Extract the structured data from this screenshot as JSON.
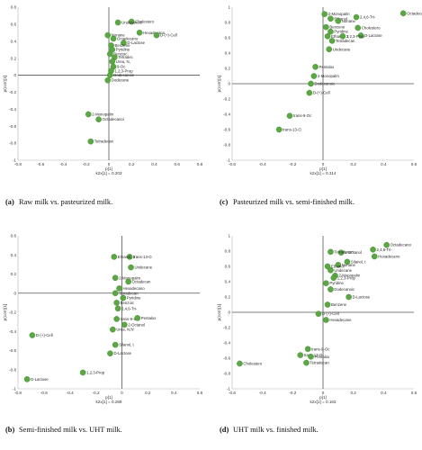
{
  "chart_data": [
    {
      "type": "scatter",
      "panel": "(a)",
      "caption": "Raw milk vs. pasteurized milk.",
      "xlabel": "p[1]",
      "xsub": "k2x[1] = 0.203",
      "ylabel": "p(corr)[1]",
      "xlim": [
        -0.8,
        0.8
      ],
      "ylim": [
        -1.0,
        0.8
      ],
      "xticks": [
        -0.8,
        -0.6,
        -0.4,
        -0.2,
        0,
        0.2,
        0.4,
        0.6,
        0.8
      ],
      "yticks": [
        0.8,
        0.6,
        0.4,
        0.2,
        0,
        -0.2,
        -0.4,
        -0.6,
        -0.8,
        -1
      ],
      "points": [
        {
          "x": 0.2,
          "y": 0.63,
          "label": "Cholestero"
        },
        {
          "x": 0.08,
          "y": 0.62,
          "label": "Undecanoic"
        },
        {
          "x": 0.27,
          "y": 0.5,
          "label": "Hexadecano"
        },
        {
          "x": 0.42,
          "y": 0.47,
          "label": "D-(+)-Cell"
        },
        {
          "x": 0.13,
          "y": 0.38,
          "label": "D-Lactose"
        },
        {
          "x": -0.01,
          "y": 0.47,
          "label": "Nonane"
        },
        {
          "x": 0.04,
          "y": 0.43,
          "label": "Octadecano"
        },
        {
          "x": 0.02,
          "y": 0.35,
          "label": "Benzene"
        },
        {
          "x": 0.03,
          "y": 0.3,
          "label": "Pyridine"
        },
        {
          "x": 0.01,
          "y": 0.25,
          "label": "Benzoic"
        },
        {
          "x": 0.05,
          "y": 0.21,
          "label": "Tetradec"
        },
        {
          "x": 0.03,
          "y": 0.16,
          "label": "Urea, N,"
        },
        {
          "x": 0.04,
          "y": 0.1,
          "label": "9-Oc"
        },
        {
          "x": 0.02,
          "y": 0.05,
          "label": "1,2,3-Prop"
        },
        {
          "x": 0.01,
          "y": 0.0,
          "label": "Dodecanoic"
        },
        {
          "x": -0.01,
          "y": -0.06,
          "label": "Dodecane"
        },
        {
          "x": -0.18,
          "y": -0.46,
          "label": "2-Monopalm"
        },
        {
          "x": -0.09,
          "y": -0.52,
          "label": "Octadecanoi"
        },
        {
          "x": -0.16,
          "y": -0.78,
          "label": "Tetradecan"
        }
      ]
    },
    {
      "type": "scatter",
      "panel": "(c)",
      "caption": "Pasteurized milk vs. semi-finished milk.",
      "xlabel": "p[1]",
      "xsub": "k2x[1] = 0.314",
      "ylabel": "p(corr)[1]",
      "xlim": [
        -0.6,
        0.6
      ],
      "ylim": [
        -1.0,
        1.0
      ],
      "xticks": [
        -0.6,
        -0.4,
        -0.2,
        0,
        0.2,
        0.4,
        0.6
      ],
      "yticks": [
        1,
        0.8,
        0.6,
        0.4,
        0.2,
        0,
        -0.2,
        -0.4,
        -0.6,
        -0.8,
        -1
      ],
      "points": [
        {
          "x": 0.53,
          "y": 0.92,
          "label": "Octadecano"
        },
        {
          "x": 0.22,
          "y": 0.87,
          "label": "2,4,6-Tri-"
        },
        {
          "x": 0.01,
          "y": 0.91,
          "label": "2-Monopalm"
        },
        {
          "x": 0.05,
          "y": 0.85,
          "label": "Ethanol"
        },
        {
          "x": 0.1,
          "y": 0.82,
          "label": "Nonane"
        },
        {
          "x": 0.23,
          "y": 0.73,
          "label": "Cholestero"
        },
        {
          "x": 0.25,
          "y": 0.63,
          "label": "D-Lactose"
        },
        {
          "x": 0.02,
          "y": 0.74,
          "label": "Benzene"
        },
        {
          "x": 0.05,
          "y": 0.68,
          "label": "Pyridine"
        },
        {
          "x": 0.03,
          "y": 0.62,
          "label": "Ethanol, 2"
        },
        {
          "x": 0.13,
          "y": 0.62,
          "label": "1,2,3-Prop"
        },
        {
          "x": 0.06,
          "y": 0.56,
          "label": "Tetradecan"
        },
        {
          "x": 0.04,
          "y": 0.45,
          "label": "Undecane"
        },
        {
          "x": -0.05,
          "y": 0.22,
          "label": "Pentalox"
        },
        {
          "x": -0.06,
          "y": 0.1,
          "label": "2-Monopalm"
        },
        {
          "x": -0.08,
          "y": 0.0,
          "label": "Dodecanoic"
        },
        {
          "x": -0.09,
          "y": -0.12,
          "label": "D-(+)-Cell"
        },
        {
          "x": -0.22,
          "y": -0.42,
          "label": "trans-9-Oc"
        },
        {
          "x": -0.29,
          "y": -0.6,
          "label": "trans-13-O"
        }
      ]
    },
    {
      "type": "scatter",
      "panel": "(b)",
      "caption": "Semi-finished milk vs. UHT milk.",
      "xlabel": "p[1]",
      "xsub": "k2x[1] = 0.289",
      "ylabel": "p(corr)[1]",
      "xlim": [
        -0.8,
        0.6
      ],
      "ylim": [
        -1.0,
        0.6
      ],
      "xticks": [
        -0.8,
        -0.6,
        -0.4,
        -0.2,
        0,
        0.2,
        0.4,
        0.6
      ],
      "yticks": [
        0.6,
        0.4,
        0.2,
        0,
        -0.2,
        -0.4,
        -0.6,
        -0.8,
        -1
      ],
      "points": [
        {
          "x": 0.06,
          "y": 0.38,
          "label": "trans-13-O"
        },
        {
          "x": -0.06,
          "y": 0.38,
          "label": "Ethanol, 2"
        },
        {
          "x": 0.07,
          "y": 0.27,
          "label": "Undecane"
        },
        {
          "x": -0.05,
          "y": 0.16,
          "label": "2-Monopalm"
        },
        {
          "x": 0.05,
          "y": 0.12,
          "label": "Octadecan"
        },
        {
          "x": -0.02,
          "y": 0.05,
          "label": "Hexadecano"
        },
        {
          "x": -0.05,
          "y": 0.0,
          "label": "Tetradecan"
        },
        {
          "x": 0.01,
          "y": -0.05,
          "label": "Pyridine"
        },
        {
          "x": -0.04,
          "y": -0.1,
          "label": "Benzoic"
        },
        {
          "x": -0.03,
          "y": -0.16,
          "label": "2,4,6-Tri-"
        },
        {
          "x": -0.04,
          "y": -0.27,
          "label": "trans-9-Oc"
        },
        {
          "x": 0.12,
          "y": -0.26,
          "label": "Pentalox"
        },
        {
          "x": 0.02,
          "y": -0.33,
          "label": "2-Octanol"
        },
        {
          "x": -0.07,
          "y": -0.38,
          "label": "Urea, N,N'"
        },
        {
          "x": -0.09,
          "y": -0.63,
          "label": "D-Lactose"
        },
        {
          "x": -0.05,
          "y": -0.54,
          "label": "Silanol, t"
        },
        {
          "x": -0.69,
          "y": -0.44,
          "label": "D-(+)-Cell"
        },
        {
          "x": -0.73,
          "y": -0.9,
          "label": "D-Lactose"
        },
        {
          "x": -0.3,
          "y": -0.83,
          "label": "1,2,3-Prop"
        }
      ]
    },
    {
      "type": "scatter",
      "panel": "(d)",
      "caption": "UHT milk vs. finished milk.",
      "xlabel": "p[1]",
      "xsub": "k2x[1] = 0.163",
      "ylabel": "p(corr)[1]",
      "xlim": [
        -0.6,
        0.6
      ],
      "ylim": [
        -1.0,
        1.0
      ],
      "xticks": [
        -0.6,
        -0.4,
        -0.2,
        0,
        0.2,
        0.4,
        0.6
      ],
      "yticks": [
        1,
        0.8,
        0.6,
        0.4,
        0.2,
        0,
        -0.2,
        -0.4,
        -0.6,
        -0.8,
        -1
      ],
      "points": [
        {
          "x": 0.42,
          "y": 0.88,
          "label": "Octadecano"
        },
        {
          "x": 0.33,
          "y": 0.82,
          "label": "2,4,6-Tri-"
        },
        {
          "x": 0.34,
          "y": 0.73,
          "label": "Hexadecano"
        },
        {
          "x": 0.12,
          "y": 0.78,
          "label": "2-Octanol"
        },
        {
          "x": 0.05,
          "y": 0.79,
          "label": "Tetradecan"
        },
        {
          "x": 0.16,
          "y": 0.66,
          "label": "Silanol, t"
        },
        {
          "x": 0.1,
          "y": 0.62,
          "label": "Nonane"
        },
        {
          "x": 0.03,
          "y": 0.6,
          "label": "Ethanol"
        },
        {
          "x": 0.05,
          "y": 0.55,
          "label": "Undecane"
        },
        {
          "x": 0.08,
          "y": 0.48,
          "label": "2-Monopalm"
        },
        {
          "x": 0.07,
          "y": 0.45,
          "label": "1,2,3-Prop"
        },
        {
          "x": 0.02,
          "y": 0.38,
          "label": "Pyridine"
        },
        {
          "x": 0.05,
          "y": 0.3,
          "label": "Dodecanoic"
        },
        {
          "x": 0.17,
          "y": 0.2,
          "label": "D-Lactose"
        },
        {
          "x": 0.03,
          "y": 0.1,
          "label": "Benzene"
        },
        {
          "x": -0.03,
          "y": -0.02,
          "label": "D-(+)-Cell"
        },
        {
          "x": 0.02,
          "y": -0.1,
          "label": "Hexadecane"
        },
        {
          "x": -0.1,
          "y": -0.48,
          "label": "trans-9-Oc"
        },
        {
          "x": -0.15,
          "y": -0.56,
          "label": "trans-13-O"
        },
        {
          "x": -0.08,
          "y": -0.58,
          "label": "Pentalox"
        },
        {
          "x": -0.11,
          "y": -0.66,
          "label": "Tetradecan"
        },
        {
          "x": -0.55,
          "y": -0.67,
          "label": "Cholestero"
        }
      ]
    }
  ]
}
